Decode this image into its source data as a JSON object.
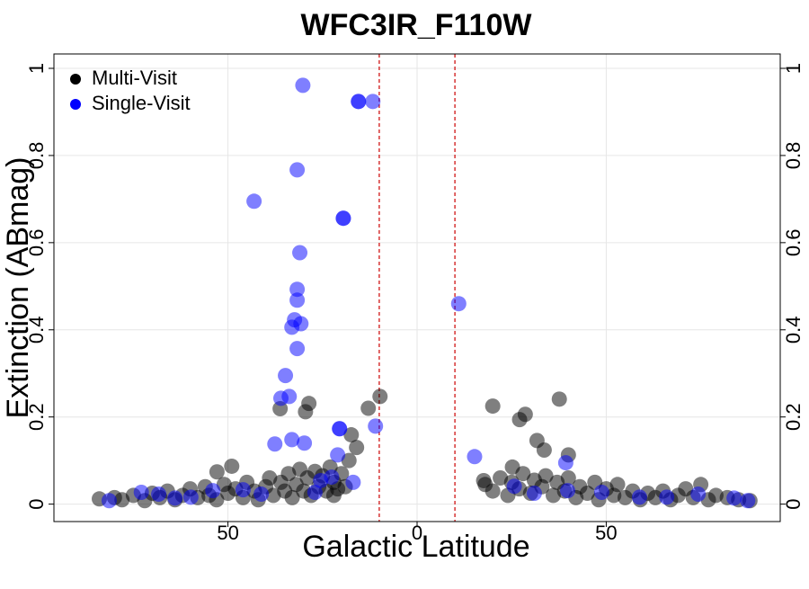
{
  "chart_data": {
    "type": "scatter",
    "title": "WFC3IR_F110W",
    "xlabel": "Galactic Latitude",
    "ylabel": "Extinction (ABmag)",
    "xlim": [
      -96,
      96
    ],
    "ylim": [
      -0.04,
      1.033
    ],
    "xticks": [
      {
        "value": -50,
        "label": "50"
      },
      0,
      50
    ],
    "yticks": [
      0,
      0.2,
      0.4,
      0.6,
      0.8,
      1
    ],
    "grid": true,
    "legend": "top-left",
    "marker_opacity": 0.5,
    "vlines": [
      -10,
      10
    ],
    "vline_color": "#cc0000",
    "series": [
      {
        "name": "Multi-Visit",
        "color": "#000000",
        "x": [
          -84,
          -80,
          -78,
          -75,
          -72,
          -70,
          -68,
          -66,
          -64,
          -62,
          -60,
          -58,
          -56,
          -55,
          -53,
          -51,
          -50,
          -48,
          -46,
          -45,
          -43,
          -42,
          -40,
          -39,
          -38,
          -36,
          -35,
          -34,
          -33,
          -32,
          -31,
          -30,
          -29,
          -28,
          -27,
          -26,
          -25,
          -24,
          -23,
          -22,
          -21,
          -20,
          -19,
          -18,
          -22,
          18,
          20,
          22,
          24,
          25,
          27,
          28,
          30,
          31,
          33,
          34,
          36,
          37,
          39,
          40,
          42,
          43,
          45,
          47,
          48,
          50,
          52,
          53,
          55,
          57,
          59,
          61,
          63,
          65,
          67,
          69,
          71,
          73,
          75,
          77,
          79,
          82,
          85,
          88,
          -36.2,
          -28.6,
          -29.5,
          -17.4,
          -16,
          -12.9,
          -9.8,
          20,
          27.1,
          28.6,
          31.7,
          33.6,
          37.6,
          40,
          25.2,
          17.6,
          -52.9,
          -49
        ],
        "y": [
          0.012,
          0.015,
          0.01,
          0.02,
          0.008,
          0.025,
          0.015,
          0.03,
          0.01,
          0.02,
          0.035,
          0.015,
          0.04,
          0.02,
          0.01,
          0.045,
          0.025,
          0.035,
          0.015,
          0.05,
          0.03,
          0.01,
          0.04,
          0.06,
          0.02,
          0.05,
          0.03,
          0.07,
          0.015,
          0.045,
          0.08,
          0.03,
          0.06,
          0.02,
          0.075,
          0.04,
          0.065,
          0.03,
          0.085,
          0.05,
          0.035,
          0.07,
          0.04,
          0.1,
          0.02,
          0.045,
          0.03,
          0.06,
          0.02,
          0.05,
          0.035,
          0.07,
          0.025,
          0.055,
          0.04,
          0.065,
          0.02,
          0.05,
          0.03,
          0.06,
          0.015,
          0.04,
          0.025,
          0.05,
          0.01,
          0.035,
          0.02,
          0.045,
          0.015,
          0.03,
          0.01,
          0.025,
          0.015,
          0.03,
          0.01,
          0.02,
          0.035,
          0.015,
          0.045,
          0.01,
          0.02,
          0.015,
          0.01,
          0.008,
          0.219,
          0.231,
          0.212,
          0.159,
          0.13,
          0.22,
          0.247,
          0.225,
          0.194,
          0.206,
          0.146,
          0.124,
          0.241,
          0.113,
          0.085,
          0.054,
          0.074,
          0.087
        ]
      },
      {
        "name": "Single-Visit",
        "color": "#0000ff",
        "x": [
          -30.2,
          -15.5,
          -15.5,
          -11.7,
          -31.7,
          -43.1,
          -19.5,
          -19.5,
          -31,
          -31.7,
          -31.7,
          -32.4,
          -30.7,
          -33.1,
          -31.7,
          -34.8,
          -33.8,
          -36,
          11,
          -11,
          -20.5,
          -20.5,
          -33.1,
          -29.8,
          -21,
          -37.6,
          15.2,
          39.3,
          -16.9,
          -81.4,
          -72.9,
          -68.3,
          -64,
          -59.8,
          -54,
          -46,
          -41.2,
          -27,
          -25.5,
          -22.6,
          25.7,
          31,
          39.8,
          48.8,
          58.8,
          66,
          74.3,
          83.8,
          87.4
        ],
        "y": [
          0.961,
          0.924,
          0.924,
          0.924,
          0.767,
          0.695,
          0.656,
          0.656,
          0.577,
          0.493,
          0.468,
          0.423,
          0.414,
          0.406,
          0.357,
          0.295,
          0.247,
          0.243,
          0.46,
          0.179,
          0.173,
          0.173,
          0.148,
          0.14,
          0.113,
          0.138,
          0.109,
          0.095,
          0.05,
          0.008,
          0.027,
          0.023,
          0.014,
          0.016,
          0.031,
          0.033,
          0.023,
          0.027,
          0.054,
          0.062,
          0.041,
          0.025,
          0.031,
          0.027,
          0.016,
          0.016,
          0.023,
          0.014,
          0.008
        ]
      }
    ]
  }
}
